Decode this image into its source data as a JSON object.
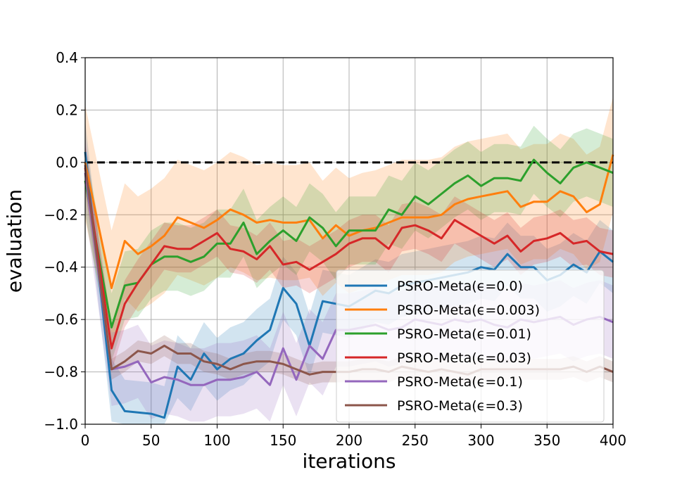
{
  "chart_data": {
    "type": "line",
    "xlabel": "iterations",
    "ylabel": "evaluation",
    "xlim": [
      0,
      400
    ],
    "ylim": [
      -1.0,
      0.4
    ],
    "xticks": [
      "0",
      "50",
      "100",
      "150",
      "200",
      "250",
      "300",
      "350",
      "400"
    ],
    "yticks": [
      "−1.0",
      "−0.8",
      "−0.6",
      "−0.4",
      "−0.2",
      "0.0",
      "0.2",
      "0.4"
    ],
    "grid": true,
    "legend_position": "bottom-right",
    "reference_line": {
      "y": 0.0,
      "style": "dashed",
      "color": "#000000"
    },
    "x": [
      0,
      20,
      30,
      40,
      50,
      60,
      70,
      80,
      90,
      100,
      110,
      120,
      130,
      140,
      150,
      160,
      170,
      180,
      190,
      200,
      210,
      220,
      230,
      240,
      250,
      260,
      270,
      280,
      290,
      300,
      310,
      320,
      330,
      340,
      350,
      360,
      370,
      380,
      390,
      400
    ],
    "series": [
      {
        "name": "PSRO-Meta(ϵ=0.0)",
        "color": "#1f77b4",
        "values": [
          0.04,
          -0.87,
          -0.95,
          -0.955,
          -0.96,
          -0.975,
          -0.78,
          -0.83,
          -0.73,
          -0.79,
          -0.75,
          -0.73,
          -0.68,
          -0.64,
          -0.48,
          -0.54,
          -0.7,
          -0.53,
          -0.54,
          -0.55,
          -0.52,
          -0.49,
          -0.5,
          -0.47,
          -0.46,
          -0.45,
          -0.44,
          -0.43,
          -0.42,
          -0.4,
          -0.41,
          -0.35,
          -0.4,
          -0.4,
          -0.45,
          -0.43,
          -0.39,
          -0.42,
          -0.34,
          -0.38
        ],
        "band": 0.12
      },
      {
        "name": "PSRO-Meta(ϵ=0.003)",
        "color": "#ff7f0e",
        "values": [
          0.0,
          -0.48,
          -0.3,
          -0.35,
          -0.32,
          -0.28,
          -0.21,
          -0.23,
          -0.25,
          -0.22,
          -0.18,
          -0.2,
          -0.23,
          -0.22,
          -0.23,
          -0.23,
          -0.22,
          -0.29,
          -0.24,
          -0.28,
          -0.26,
          -0.25,
          -0.23,
          -0.21,
          -0.21,
          -0.21,
          -0.2,
          -0.16,
          -0.14,
          -0.13,
          -0.12,
          -0.11,
          -0.17,
          -0.15,
          -0.15,
          -0.11,
          -0.13,
          -0.19,
          -0.16,
          0.03
        ],
        "band": 0.22
      },
      {
        "name": "PSRO-Meta(ϵ=0.01)",
        "color": "#2ca02c",
        "values": [
          -0.07,
          -0.63,
          -0.47,
          -0.46,
          -0.39,
          -0.36,
          -0.36,
          -0.38,
          -0.36,
          -0.31,
          -0.31,
          -0.23,
          -0.35,
          -0.3,
          -0.26,
          -0.3,
          -0.21,
          -0.25,
          -0.32,
          -0.26,
          -0.26,
          -0.26,
          -0.18,
          -0.2,
          -0.13,
          -0.16,
          -0.12,
          -0.08,
          -0.05,
          -0.09,
          -0.06,
          -0.06,
          -0.07,
          0.01,
          -0.04,
          -0.08,
          -0.02,
          0.0,
          -0.02,
          -0.04
        ],
        "band": 0.13
      },
      {
        "name": "PSRO-Meta(ϵ=0.03)",
        "color": "#d62728",
        "values": [
          -0.02,
          -0.71,
          -0.54,
          -0.46,
          -0.39,
          -0.32,
          -0.33,
          -0.33,
          -0.3,
          -0.27,
          -0.33,
          -0.34,
          -0.37,
          -0.32,
          -0.39,
          -0.38,
          -0.41,
          -0.38,
          -0.35,
          -0.31,
          -0.29,
          -0.29,
          -0.33,
          -0.25,
          -0.24,
          -0.26,
          -0.29,
          -0.22,
          -0.25,
          -0.28,
          -0.31,
          -0.28,
          -0.34,
          -0.3,
          -0.29,
          -0.27,
          -0.31,
          -0.3,
          -0.34,
          -0.35
        ],
        "band": 0.09
      },
      {
        "name": "PSRO-Meta(ϵ=0.1)",
        "color": "#9467bd",
        "values": [
          -0.04,
          -0.79,
          -0.78,
          -0.76,
          -0.84,
          -0.82,
          -0.83,
          -0.85,
          -0.85,
          -0.83,
          -0.83,
          -0.82,
          -0.8,
          -0.85,
          -0.71,
          -0.83,
          -0.7,
          -0.75,
          -0.64,
          -0.64,
          -0.63,
          -0.62,
          -0.64,
          -0.63,
          -0.6,
          -0.61,
          -0.62,
          -0.6,
          -0.61,
          -0.6,
          -0.62,
          -0.63,
          -0.6,
          -0.61,
          -0.6,
          -0.59,
          -0.62,
          -0.6,
          -0.59,
          -0.61
        ],
        "band": 0.14
      },
      {
        "name": "PSRO-Meta(ϵ=0.3)",
        "color": "#8c564b",
        "values": [
          -0.01,
          -0.79,
          -0.76,
          -0.72,
          -0.73,
          -0.7,
          -0.73,
          -0.73,
          -0.76,
          -0.77,
          -0.79,
          -0.77,
          -0.76,
          -0.76,
          -0.77,
          -0.79,
          -0.81,
          -0.8,
          -0.8,
          -0.8,
          -0.79,
          -0.79,
          -0.8,
          -0.78,
          -0.79,
          -0.8,
          -0.79,
          -0.8,
          -0.81,
          -0.79,
          -0.79,
          -0.79,
          -0.79,
          -0.79,
          -0.79,
          -0.79,
          -0.78,
          -0.8,
          -0.78,
          -0.8
        ],
        "band": 0.04
      }
    ]
  }
}
